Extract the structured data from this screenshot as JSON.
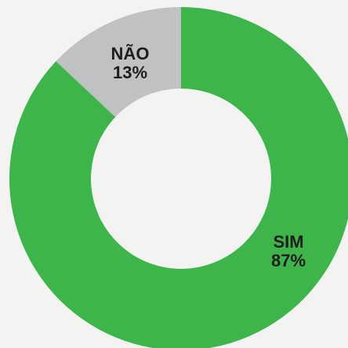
{
  "chart_data": {
    "type": "donut",
    "categories": [
      "SIM",
      "NÃO"
    ],
    "values": [
      87,
      13
    ],
    "value_labels": [
      "87%",
      "13%"
    ],
    "colors": [
      "#3db54a",
      "#c0c1c3"
    ]
  }
}
